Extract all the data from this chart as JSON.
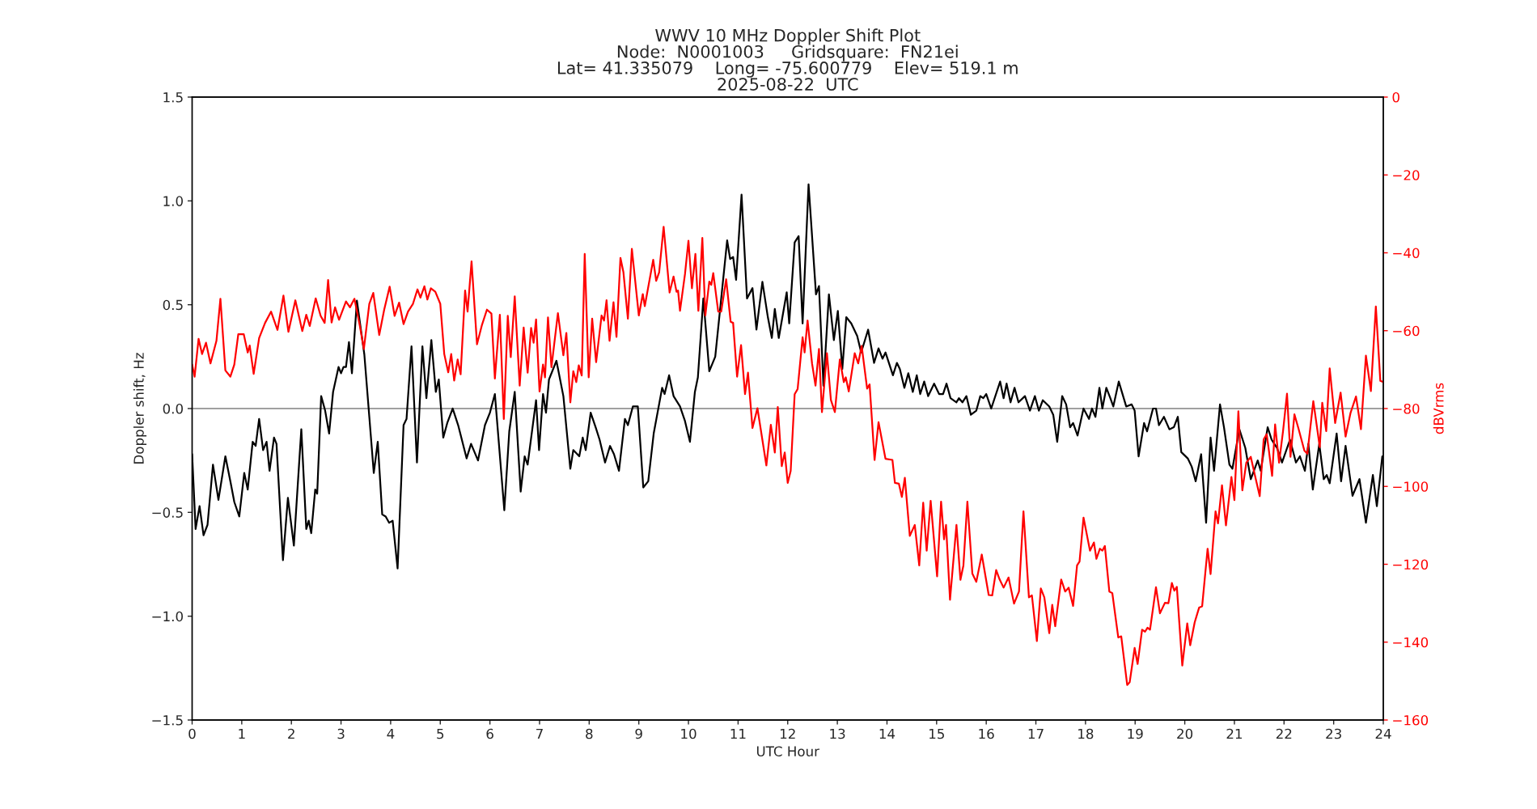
{
  "chart_data": {
    "type": "line",
    "title": "WWV 10 MHz Doppler Shift Plot\nNode:  N0001003     Gridsquare:  FN21ei\nLat= 41.335079    Long= -75.600779    Elev= 519.1 m\n2025-08-22  UTC",
    "xlabel": "UTC Hour",
    "ylabel": "Doppler shift, Hz",
    "y2label": "dBVrms",
    "xlim": [
      0,
      24
    ],
    "xticks": [
      0,
      1,
      2,
      3,
      4,
      5,
      6,
      7,
      8,
      9,
      10,
      11,
      12,
      13,
      14,
      15,
      16,
      17,
      18,
      19,
      20,
      21,
      22,
      23,
      24
    ],
    "ylim": [
      -1.5,
      1.5
    ],
    "yticks": [
      {
        "value": -1.5,
        "label": "−1.5"
      },
      {
        "value": -1,
        "label": "−1.0"
      },
      {
        "value": -0.5,
        "label": "−0.5"
      },
      {
        "value": 0,
        "label": "0.0"
      },
      {
        "value": 0.5,
        "label": "0.5"
      },
      {
        "value": 1,
        "label": "1.0"
      },
      {
        "value": 1.5,
        "label": "1.5"
      }
    ],
    "y2lim": [
      -160,
      0
    ],
    "y2ticks": [
      {
        "value": -160,
        "label": "−160"
      },
      {
        "value": -140,
        "label": "−140"
      },
      {
        "value": -120,
        "label": "−120"
      },
      {
        "value": -100,
        "label": "−100"
      },
      {
        "value": -80,
        "label": "−80"
      },
      {
        "value": -60,
        "label": "−60"
      },
      {
        "value": -40,
        "label": "−40"
      },
      {
        "value": -20,
        "label": "−20"
      },
      0
    ],
    "grid": false,
    "legend": false,
    "line_style": "solid",
    "marker": "none",
    "ref_lines": [
      {
        "axis": "y",
        "value": 0,
        "color": "#808080"
      }
    ],
    "series": [
      {
        "color": "#000000",
        "axis": "y",
        "x": [
          0.0,
          0.07,
          0.15,
          0.23,
          0.31,
          0.42,
          0.53,
          0.67,
          0.77,
          0.85,
          0.95,
          1.05,
          1.12,
          1.22,
          1.28,
          1.35,
          1.43,
          1.5,
          1.56,
          1.65,
          1.7,
          1.83,
          1.93,
          2.05,
          2.2,
          2.3,
          2.35,
          2.4,
          2.48,
          2.52,
          2.6,
          2.68,
          2.76,
          2.84,
          2.95,
          3.0,
          3.05,
          3.1,
          3.16,
          3.22,
          3.32,
          3.47,
          3.57,
          3.66,
          3.74,
          3.83,
          3.9,
          3.97,
          4.04,
          4.14,
          4.26,
          4.32,
          4.42,
          4.53,
          4.64,
          4.72,
          4.82,
          4.91,
          4.97,
          5.06,
          5.14,
          5.25,
          5.36,
          5.53,
          5.62,
          5.76,
          5.9,
          6.0,
          6.1,
          6.29,
          6.39,
          6.5,
          6.62,
          6.7,
          6.76,
          6.93,
          6.99,
          7.07,
          7.13,
          7.19,
          7.34,
          7.48,
          7.62,
          7.68,
          7.8,
          7.87,
          7.93,
          8.03,
          8.13,
          8.21,
          8.32,
          8.42,
          8.5,
          8.6,
          8.72,
          8.78,
          8.88,
          8.98,
          9.09,
          9.19,
          9.3,
          9.47,
          9.52,
          9.61,
          9.7,
          9.83,
          9.93,
          10.03,
          10.13,
          10.19,
          10.3,
          10.42,
          10.54,
          10.78,
          10.84,
          10.9,
          10.96,
          11.07,
          11.18,
          11.29,
          11.37,
          11.49,
          11.6,
          11.68,
          11.74,
          11.82,
          11.98,
          12.03,
          12.14,
          12.22,
          12.3,
          12.42,
          12.57,
          12.63,
          12.72,
          12.83,
          12.93,
          13.01,
          13.1,
          13.18,
          13.28,
          13.4,
          13.48,
          13.62,
          13.74,
          13.83,
          13.91,
          13.97,
          14.12,
          14.2,
          14.26,
          14.35,
          14.43,
          14.52,
          14.6,
          14.67,
          14.75,
          14.83,
          14.95,
          15.05,
          15.13,
          15.2,
          15.28,
          15.4,
          15.45,
          15.52,
          15.6,
          15.69,
          15.8,
          15.88,
          15.94,
          16.0,
          16.1,
          16.28,
          16.35,
          16.41,
          16.49,
          16.57,
          16.65,
          16.78,
          16.88,
          16.98,
          17.06,
          17.14,
          17.27,
          17.35,
          17.43,
          17.53,
          17.61,
          17.69,
          17.75,
          17.84,
          17.96,
          18.07,
          18.13,
          18.2,
          18.28,
          18.34,
          18.42,
          18.5,
          18.56,
          18.67,
          18.82,
          18.93,
          18.99,
          19.07,
          19.18,
          19.24,
          19.36,
          19.42,
          19.48,
          19.58,
          19.69,
          19.78,
          19.86,
          19.93,
          20.06,
          20.14,
          20.22,
          20.33,
          20.43,
          20.52,
          20.59,
          20.71,
          20.79,
          20.9,
          20.96,
          21.1,
          21.22,
          21.33,
          21.47,
          21.53,
          21.67,
          21.75,
          21.86,
          21.96,
          22.12,
          22.24,
          22.32,
          22.42,
          22.49,
          22.58,
          22.71,
          22.8,
          22.86,
          22.92,
          23.06,
          23.15,
          23.24,
          23.38,
          23.52,
          23.65,
          23.79,
          23.87,
          23.98,
          24.0
        ],
        "values": [
          -0.22,
          -0.58,
          -0.47,
          -0.61,
          -0.56,
          -0.27,
          -0.44,
          -0.23,
          -0.35,
          -0.45,
          -0.52,
          -0.31,
          -0.39,
          -0.16,
          -0.18,
          -0.05,
          -0.2,
          -0.16,
          -0.3,
          -0.14,
          -0.17,
          -0.73,
          -0.43,
          -0.66,
          -0.1,
          -0.58,
          -0.54,
          -0.6,
          -0.39,
          -0.41,
          0.06,
          -0.01,
          -0.12,
          0.08,
          0.2,
          0.17,
          0.2,
          0.2,
          0.32,
          0.17,
          0.52,
          0.26,
          -0.04,
          -0.31,
          -0.16,
          -0.51,
          -0.52,
          -0.55,
          -0.54,
          -0.77,
          -0.08,
          -0.05,
          0.3,
          -0.26,
          0.3,
          0.05,
          0.33,
          0.08,
          0.14,
          -0.14,
          -0.07,
          0.0,
          -0.08,
          -0.24,
          -0.17,
          -0.25,
          -0.08,
          -0.02,
          0.07,
          -0.49,
          -0.11,
          0.08,
          -0.4,
          -0.23,
          -0.27,
          0.04,
          -0.2,
          0.07,
          -0.02,
          0.14,
          0.23,
          0.06,
          -0.29,
          -0.2,
          -0.23,
          -0.14,
          -0.2,
          -0.02,
          -0.09,
          -0.15,
          -0.26,
          -0.18,
          -0.22,
          -0.3,
          -0.05,
          -0.08,
          0.01,
          0.01,
          -0.38,
          -0.35,
          -0.12,
          0.1,
          0.07,
          0.16,
          0.06,
          0.01,
          -0.06,
          -0.16,
          0.08,
          0.15,
          0.53,
          0.18,
          0.25,
          0.81,
          0.72,
          0.73,
          0.62,
          1.03,
          0.53,
          0.58,
          0.38,
          0.61,
          0.44,
          0.34,
          0.48,
          0.34,
          0.56,
          0.41,
          0.8,
          0.83,
          0.41,
          1.08,
          0.55,
          0.59,
          0.11,
          0.55,
          0.33,
          0.47,
          0.19,
          0.44,
          0.41,
          0.35,
          0.27,
          0.38,
          0.22,
          0.29,
          0.24,
          0.27,
          0.16,
          0.22,
          0.19,
          0.1,
          0.17,
          0.08,
          0.16,
          0.07,
          0.13,
          0.06,
          0.12,
          0.07,
          0.07,
          0.12,
          0.05,
          0.03,
          0.05,
          0.03,
          0.06,
          -0.03,
          -0.01,
          0.06,
          0.05,
          0.07,
          0.0,
          0.13,
          0.05,
          0.12,
          0.03,
          0.1,
          0.03,
          0.06,
          -0.01,
          0.06,
          -0.01,
          0.04,
          0.01,
          -0.03,
          -0.16,
          0.06,
          0.02,
          -0.09,
          -0.07,
          -0.13,
          0.0,
          -0.05,
          0.0,
          -0.04,
          0.1,
          0.0,
          0.1,
          0.05,
          0.01,
          0.13,
          0.01,
          0.02,
          -0.01,
          -0.23,
          -0.07,
          -0.11,
          0.0,
          0.0,
          -0.08,
          -0.04,
          -0.1,
          -0.09,
          -0.04,
          -0.21,
          -0.24,
          -0.28,
          -0.35,
          -0.22,
          -0.55,
          -0.14,
          -0.3,
          0.02,
          -0.09,
          -0.27,
          -0.29,
          -0.1,
          -0.19,
          -0.34,
          -0.25,
          -0.3,
          -0.09,
          -0.15,
          -0.19,
          -0.26,
          -0.15,
          -0.26,
          -0.23,
          -0.3,
          -0.17,
          -0.39,
          -0.17,
          -0.34,
          -0.32,
          -0.36,
          -0.12,
          -0.35,
          -0.18,
          -0.42,
          -0.34,
          -0.55,
          -0.32,
          -0.47,
          -0.23,
          -0.23
        ]
      },
      {
        "color": "#ff0000",
        "axis": "y2",
        "x": [
          0.0,
          0.05,
          0.13,
          0.2,
          0.28,
          0.37,
          0.49,
          0.57,
          0.67,
          0.77,
          0.85,
          0.93,
          1.04,
          1.12,
          1.16,
          1.24,
          1.35,
          1.47,
          1.59,
          1.72,
          1.84,
          1.94,
          2.08,
          2.22,
          2.3,
          2.37,
          2.49,
          2.59,
          2.67,
          2.74,
          2.81,
          2.88,
          2.96,
          3.1,
          3.18,
          3.27,
          3.38,
          3.46,
          3.57,
          3.65,
          3.77,
          3.87,
          3.98,
          4.08,
          4.17,
          4.26,
          4.35,
          4.45,
          4.54,
          4.6,
          4.68,
          4.74,
          4.81,
          4.9,
          5.0,
          5.08,
          5.16,
          5.22,
          5.28,
          5.35,
          5.41,
          5.5,
          5.55,
          5.63,
          5.74,
          5.84,
          5.94,
          6.03,
          6.1,
          6.2,
          6.28,
          6.36,
          6.42,
          6.5,
          6.6,
          6.68,
          6.76,
          6.83,
          6.88,
          6.93,
          7.0,
          7.07,
          7.11,
          7.17,
          7.24,
          7.37,
          7.48,
          7.54,
          7.62,
          7.68,
          7.74,
          7.79,
          7.85,
          7.91,
          7.99,
          8.06,
          8.14,
          8.25,
          8.3,
          8.35,
          8.41,
          8.49,
          8.55,
          8.63,
          8.69,
          8.78,
          8.86,
          9.0,
          9.08,
          9.12,
          9.29,
          9.35,
          9.41,
          9.5,
          9.62,
          9.7,
          9.76,
          9.79,
          9.83,
          9.93,
          10.0,
          10.07,
          10.14,
          10.2,
          10.28,
          10.34,
          10.42,
          10.46,
          10.5,
          10.6,
          10.66,
          10.76,
          10.85,
          10.9,
          10.98,
          11.06,
          11.14,
          11.2,
          11.29,
          11.39,
          11.57,
          11.66,
          11.74,
          11.8,
          11.88,
          11.94,
          12.0,
          12.06,
          12.14,
          12.2,
          12.3,
          12.34,
          12.4,
          12.49,
          12.56,
          12.63,
          12.69,
          12.79,
          12.87,
          12.95,
          13.05,
          13.13,
          13.17,
          13.23,
          13.35,
          13.42,
          13.49,
          13.6,
          13.65,
          13.75,
          13.83,
          13.97,
          14.11,
          14.16,
          14.24,
          14.3,
          14.36,
          14.46,
          14.56,
          14.65,
          14.73,
          14.8,
          14.88,
          15.01,
          15.09,
          15.15,
          15.19,
          15.27,
          15.4,
          15.48,
          15.54,
          15.62,
          15.72,
          15.8,
          15.91,
          16.05,
          16.12,
          16.2,
          16.27,
          16.35,
          16.45,
          16.56,
          16.66,
          16.75,
          16.86,
          16.92,
          17.02,
          17.1,
          17.17,
          17.27,
          17.33,
          17.39,
          17.51,
          17.59,
          17.66,
          17.75,
          17.83,
          17.88,
          17.96,
          18.09,
          18.17,
          18.22,
          18.29,
          18.34,
          18.39,
          18.48,
          18.54,
          18.66,
          18.72,
          18.84,
          18.89,
          18.99,
          19.05,
          19.14,
          19.2,
          19.25,
          19.3,
          19.42,
          19.5,
          19.6,
          19.67,
          19.74,
          19.79,
          19.84,
          19.95,
          20.05,
          20.11,
          20.2,
          20.29,
          20.35,
          20.46,
          20.52,
          20.62,
          20.67,
          20.75,
          20.83,
          20.94,
          21.0,
          21.08,
          21.16,
          21.24,
          21.33,
          21.43,
          21.51,
          21.59,
          21.65,
          21.69,
          21.76,
          21.82,
          21.9,
          21.98,
          22.06,
          22.13,
          22.21,
          22.29,
          22.41,
          22.47,
          22.59,
          22.72,
          22.77,
          22.85,
          22.92,
          23.03,
          23.14,
          23.24,
          23.34,
          23.45,
          23.55,
          23.65,
          23.75,
          23.85,
          23.94,
          24.0
        ],
        "values": [
          -68.7,
          -71.8,
          -62.1,
          -66,
          -63.1,
          -68.4,
          -62.6,
          -51.8,
          -70.2,
          -71.8,
          -68.7,
          -60.9,
          -60.9,
          -65.6,
          -63.8,
          -71.1,
          -61.9,
          -58,
          -55.1,
          -59.8,
          -51,
          -60.3,
          -52.2,
          -60.1,
          -55.9,
          -58.8,
          -51.7,
          -56.2,
          -58,
          -47,
          -57.9,
          -54,
          -57.2,
          -52.5,
          -54,
          -51.8,
          -58.8,
          -64.7,
          -53.1,
          -50.3,
          -61.1,
          -54.6,
          -48.7,
          -56.2,
          -52.8,
          -58.3,
          -55.1,
          -53.1,
          -49.4,
          -51.5,
          -48.6,
          -52,
          -49.1,
          -50,
          -53.1,
          -66,
          -70.7,
          -66,
          -72.8,
          -67.4,
          -71.2,
          -49.7,
          -55.1,
          -42.2,
          -63.5,
          -58.5,
          -54.6,
          -55.6,
          -72.3,
          -55.9,
          -82.7,
          -56.2,
          -66.8,
          -51.2,
          -74.1,
          -59.2,
          -70.8,
          -59.3,
          -63.1,
          -57.1,
          -75.6,
          -68.7,
          -72,
          -56.6,
          -69.4,
          -55.5,
          -66.3,
          -60.6,
          -78.4,
          -70.4,
          -73.2,
          -68.9,
          -71.5,
          -40.3,
          -72,
          -56.9,
          -68.1,
          -56.1,
          -57.4,
          -52.2,
          -62.6,
          -52.7,
          -61.6,
          -41.3,
          -45,
          -56.9,
          -39,
          -56.1,
          -50.6,
          -53.7,
          -41.8,
          -47.2,
          -45,
          -33.3,
          -50.2,
          -46.1,
          -50,
          -49.7,
          -54.9,
          -45.5,
          -36.9,
          -49.1,
          -40.3,
          -54.9,
          -36.2,
          -56.1,
          -47.4,
          -48.2,
          -45.2,
          -55.1,
          -55.1,
          -46.8,
          -57.7,
          -58,
          -71.8,
          -63.7,
          -76.3,
          -70.8,
          -85,
          -79.9,
          -94.6,
          -84.2,
          -91.3,
          -79.6,
          -94.8,
          -91.3,
          -99.1,
          -96,
          -76.3,
          -75,
          -61.7,
          -65.6,
          -57.4,
          -68.4,
          -74.1,
          -64.7,
          -80.9,
          -65.8,
          -77.8,
          -80.9,
          -67.4,
          -73.2,
          -72,
          -75.6,
          -65.8,
          -68.4,
          -63.9,
          -74.9,
          -73.8,
          -93.2,
          -83.5,
          -92.9,
          -93.2,
          -99.1,
          -99.3,
          -102.7,
          -97.8,
          -112.7,
          -109.9,
          -120.3,
          -104.2,
          -116.5,
          -103.7,
          -123.1,
          -103.9,
          -113.6,
          -109.9,
          -129.1,
          -109.9,
          -124,
          -120.3,
          -103.9,
          -122.4,
          -124.5,
          -117.5,
          -127.9,
          -128,
          -121.5,
          -123.9,
          -126,
          -123.4,
          -130.1,
          -127,
          -106.4,
          -128.5,
          -128,
          -139.7,
          -126.2,
          -128.5,
          -137.7,
          -130.4,
          -135.9,
          -123.9,
          -127,
          -126,
          -130.7,
          -120.3,
          -119.3,
          -108,
          -116.5,
          -114.4,
          -118.6,
          -116,
          -116.5,
          -115.3,
          -127,
          -127.4,
          -138.8,
          -138.5,
          -151,
          -150.3,
          -141.5,
          -145.6,
          -136.8,
          -137.3,
          -136.3,
          -136.8,
          -125.9,
          -132.6,
          -129.9,
          -130,
          -124.8,
          -126.8,
          -125.8,
          -146,
          -135.2,
          -140.8,
          -134.9,
          -131.1,
          -130.8,
          -116,
          -122.5,
          -106.4,
          -109.5,
          -99.7,
          -110,
          -97.6,
          -103.5,
          -80.7,
          -101,
          -93.9,
          -92.4,
          -98.1,
          -102.5,
          -87.9,
          -86.6,
          -90.3,
          -97.3,
          -84.1,
          -93.9,
          -85.8,
          -76.2,
          -92.4,
          -81.5,
          -85.1,
          -90.8,
          -91.6,
          -78.1,
          -89.9,
          -78.5,
          -85.8,
          -69.7,
          -83.7,
          -75.9,
          -87.2,
          -81.1,
          -76.9,
          -85.3,
          -66.4,
          -75.5,
          -53.8,
          -72.9,
          -73.2
        ]
      }
    ]
  }
}
